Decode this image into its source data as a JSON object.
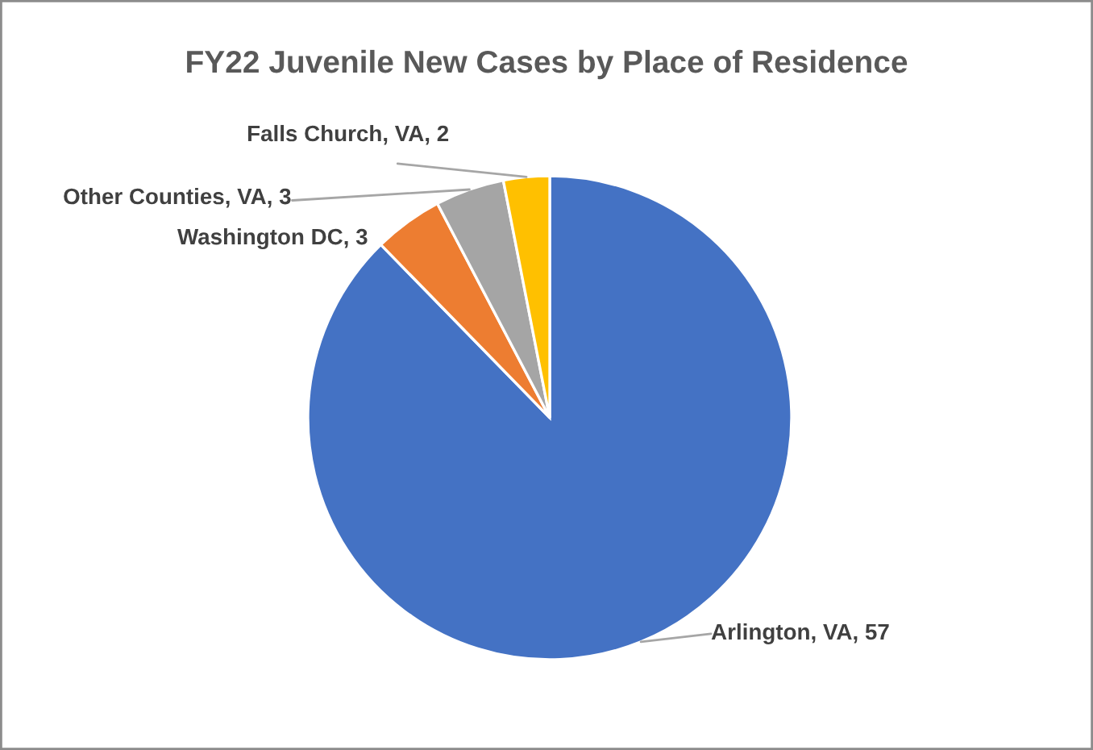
{
  "chart_data": {
    "type": "pie",
    "title": "FY22 Juvenile New Cases by Place of Residence",
    "categories": [
      "Arlington, VA",
      "Washington DC",
      "Other Counties, VA",
      "Falls Church, VA"
    ],
    "values": [
      57,
      3,
      3,
      2
    ],
    "value_labels": [
      ", 57",
      ", 3",
      ", 3",
      ", 2"
    ],
    "colors": [
      "#4472c4",
      "#ed7d31",
      "#a5a5a5",
      "#ffc000"
    ]
  }
}
